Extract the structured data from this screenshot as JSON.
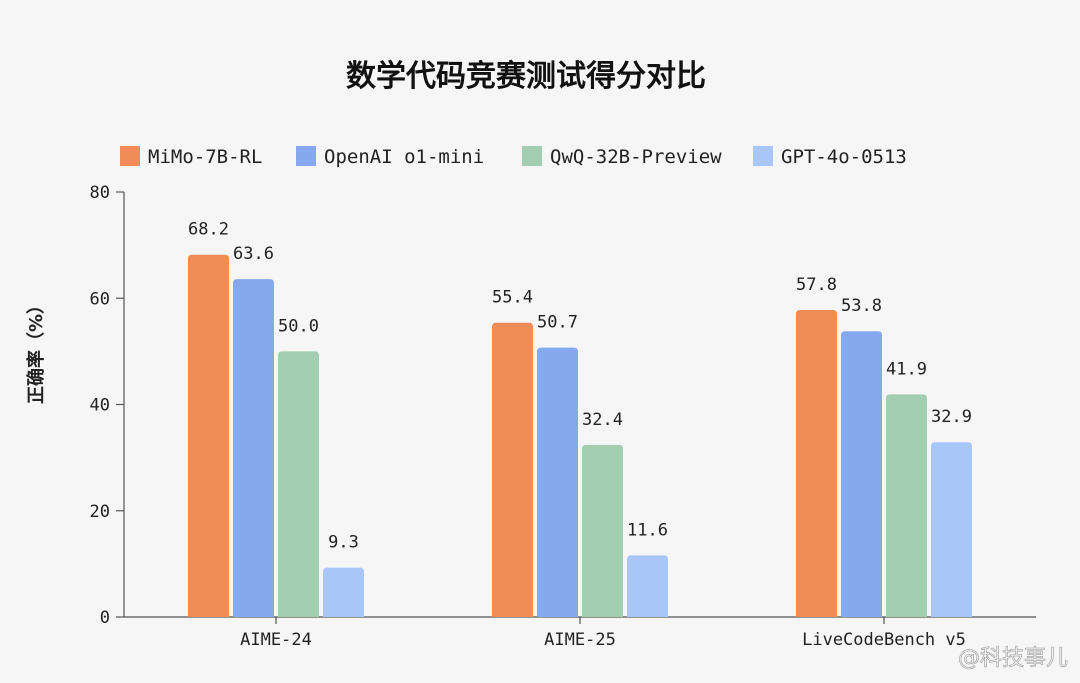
{
  "chart_data": {
    "type": "bar",
    "title": "数学代码竞赛测试得分对比",
    "ylabel": "正确率（%）",
    "xlabel": "",
    "ylim": [
      0,
      80
    ],
    "yticks": [
      0,
      20,
      40,
      60,
      80
    ],
    "legend_position": "top",
    "grid": false,
    "categories": [
      "AIME-24",
      "AIME-25",
      "LiveCodeBench v5"
    ],
    "series": [
      {
        "name": "MiMo-7B-RL",
        "color": "#ef8c57",
        "values": [
          68.2,
          55.4,
          57.8
        ],
        "labels": [
          "68.2",
          "55.4",
          "57.8"
        ]
      },
      {
        "name": "OpenAI o1-mini",
        "color": "#86a8ef",
        "values": [
          63.6,
          50.7,
          53.8
        ],
        "labels": [
          "63.6",
          "50.7",
          "53.8"
        ]
      },
      {
        "name": "QwQ-32B-Preview",
        "color": "#a3cdb0",
        "values": [
          50.0,
          32.4,
          41.9
        ],
        "labels": [
          "50.0",
          "32.4",
          "41.9"
        ]
      },
      {
        "name": "GPT-4o-0513",
        "color": "#a9c6f8",
        "values": [
          9.3,
          11.6,
          32.9
        ],
        "labels": [
          "9.3",
          "11.6",
          "32.9"
        ]
      }
    ]
  },
  "watermark": "@科技事儿"
}
